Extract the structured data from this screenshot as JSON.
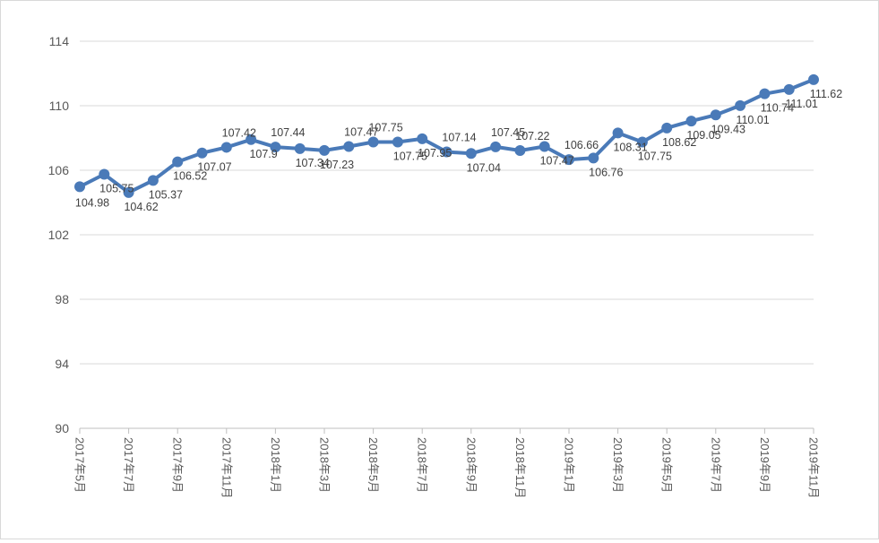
{
  "colors": {
    "series": "#4a7ab8",
    "grid": "#d9d9d9",
    "axis": "#bfbfbf",
    "text": "#595959"
  },
  "chart_data": {
    "type": "line",
    "title": "",
    "xlabel": "",
    "ylabel": "",
    "ylim": [
      90,
      114
    ],
    "yticks": [
      90,
      94,
      98,
      102,
      106,
      110,
      114
    ],
    "grid": true,
    "legend": "none",
    "x": [
      "2017年5月",
      "2017年6月",
      "2017年7月",
      "2017年8月",
      "2017年9月",
      "2017年10月",
      "2017年11月",
      "2017年12月",
      "2018年1月",
      "2018年2月",
      "2018年3月",
      "2018年4月",
      "2018年5月",
      "2018年6月",
      "2018年7月",
      "2018年8月",
      "2018年9月",
      "2018年10月",
      "2018年11月",
      "2018年12月",
      "2019年1月",
      "2019年2月",
      "2019年3月",
      "2019年4月",
      "2019年5月",
      "2019年6月",
      "2019年7月",
      "2019年8月",
      "2019年9月",
      "2019年10月",
      "2019年11月"
    ],
    "x_tick_labels": [
      "2017年5月",
      "2017年7月",
      "2017年9月",
      "2017年11月",
      "2018年1月",
      "2018年3月",
      "2018年5月",
      "2018年7月",
      "2018年9月",
      "2018年11月",
      "2019年1月",
      "2019年3月",
      "2019年5月",
      "2019年7月",
      "2019年9月",
      "2019年11月"
    ],
    "series": [
      {
        "values": [
          104.98,
          105.75,
          104.62,
          105.37,
          106.52,
          107.07,
          107.42,
          107.9,
          107.44,
          107.34,
          107.23,
          107.47,
          107.75,
          107.75,
          107.95,
          107.14,
          107.04,
          107.45,
          107.22,
          107.47,
          106.66,
          106.76,
          108.31,
          107.75,
          108.62,
          109.05,
          109.43,
          110.01,
          110.74,
          111.01,
          111.62
        ]
      }
    ]
  }
}
